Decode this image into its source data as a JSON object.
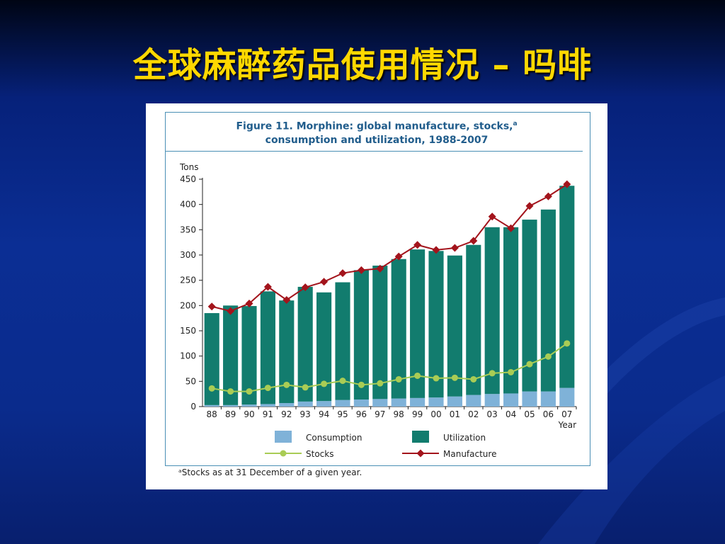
{
  "slide": {
    "title": "全球麻醉药品使用情况 – 吗啡"
  },
  "figure": {
    "title_line1": "Figure 11.   Morphine: global manufacture, stocks,",
    "title_sup": "a",
    "title_line2": "consumption and utilization, 1988-2007",
    "footnote": "ᵃStocks as at 31 December of a given year."
  },
  "colors": {
    "consumption": "#7fb2d8",
    "utilization": "#127c6e",
    "stocks": "#a9cc55",
    "manufacture": "#a3141c"
  },
  "chart_data": {
    "type": "bar",
    "stacked": true,
    "ylabel": "Tons",
    "xlabel": "Year",
    "ylim": [
      0,
      450
    ],
    "yticks": [
      0,
      50,
      100,
      150,
      200,
      250,
      300,
      350,
      400,
      450
    ],
    "categories": [
      "88",
      "89",
      "90",
      "91",
      "92",
      "93",
      "94",
      "95",
      "96",
      "97",
      "98",
      "99",
      "00",
      "01",
      "02",
      "03",
      "04",
      "05",
      "06",
      "07"
    ],
    "series": [
      {
        "name": "Consumption",
        "kind": "bar",
        "values": [
          3,
          3,
          4,
          5,
          7,
          10,
          11,
          13,
          14,
          15,
          16,
          17,
          18,
          20,
          23,
          25,
          26,
          30,
          30,
          37
        ]
      },
      {
        "name": "Utilization",
        "kind": "bar",
        "values": [
          182,
          197,
          195,
          223,
          203,
          227,
          215,
          233,
          256,
          264,
          276,
          294,
          290,
          279,
          297,
          330,
          329,
          340,
          360,
          400
        ]
      },
      {
        "name": "Stocks",
        "kind": "line",
        "values": [
          36,
          30,
          30,
          37,
          43,
          38,
          45,
          51,
          43,
          46,
          54,
          61,
          56,
          57,
          54,
          66,
          68,
          84,
          99,
          125
        ]
      },
      {
        "name": "Manufacture",
        "kind": "line",
        "values": [
          198,
          189,
          204,
          237,
          211,
          236,
          247,
          264,
          270,
          273,
          297,
          320,
          310,
          314,
          328,
          376,
          353,
          397,
          416,
          440
        ]
      }
    ],
    "legend_position": "bottom",
    "grid": false
  }
}
